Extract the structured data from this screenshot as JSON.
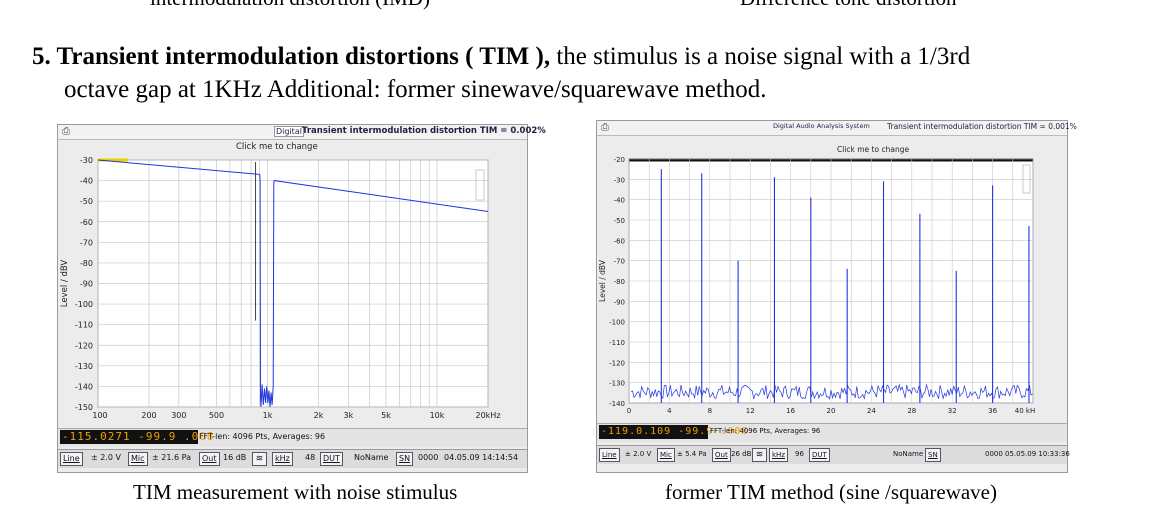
{
  "previous_captions": {
    "left": "intermodulation distortion (IMD)",
    "right": "Difference tone distortion"
  },
  "heading": {
    "bold": "5. Transient intermodulation distortions ( TIM ),",
    "line1_rest": " the stimulus is a noise signal with a 1/3rd",
    "line2": "octave gap at 1KHz Additional: former sinewave/squarewave method."
  },
  "left_panel": {
    "tab": "Digital",
    "title": "Transient intermodulation distortion TIM = 0.002%",
    "click_hint": "Click me to change",
    "y_axis_label": "Level / dBV",
    "y_ticks": [
      "-30",
      "-40",
      "-50",
      "-60",
      "-70",
      "-80",
      "-90",
      "-100",
      "-110",
      "-120",
      "-130",
      "-140",
      "-150"
    ],
    "x_ticks": [
      "100",
      "200",
      "300",
      "500",
      "1k",
      "2k",
      "3k",
      "5k",
      "10k",
      "20kHz"
    ],
    "lcd": "-115.0271  -99.9 .008",
    "fft_info": "FFT-len: 4096 Pts, Averages: 96",
    "controls": {
      "line": "Line",
      "line_val": "± 2.0 V",
      "mic": "Mic",
      "mic_val": "± 21.6 Pa",
      "out": "Out",
      "out_val": "16 dB",
      "khz": "kHz",
      "khz_val": "48",
      "dut": "DUT",
      "noname": "NoName",
      "sn": "SN",
      "sn_val": "0000",
      "datetime": "04.05.09 14:14:54"
    }
  },
  "right_panel": {
    "tab": "Digital Audio Analysis System",
    "title": "Transient intermodulation distortion TIM = 0.001%",
    "click_hint": "Click me to change",
    "y_axis_label": "Level / dBV",
    "y_ticks": [
      "-20",
      "-30",
      "-40",
      "-50",
      "-60",
      "-70",
      "-80",
      "-90",
      "-100",
      "-110",
      "-120",
      "-130",
      "-140"
    ],
    "x_ticks": [
      "0",
      "4",
      "8",
      "12",
      "16",
      "20",
      "24",
      "28",
      "32",
      "36",
      "40 kH"
    ],
    "lcd": "-119.0.109  -99.9 .008",
    "fft_info": "FFT-len: 4096 Pts, Averages: 96",
    "controls": {
      "line": "Line",
      "line_val": "± 2.0 V",
      "mic": "Mic",
      "mic_val": "± 5.4 Pa",
      "out": "Out",
      "out_val": "26 dB",
      "khz": "kHz",
      "khz_val": "96",
      "dut": "DUT",
      "noname": "NoName",
      "sn": "SN",
      "sn_val": "0000",
      "datetime": "05.05.09 10:33:36"
    }
  },
  "captions": {
    "left": "TIM measurement with noise stimulus",
    "right": "former TIM method (sine /squarewave)"
  },
  "colors": {
    "trace": "#2233dd",
    "grid": "#c8c8c8",
    "lcd_text": "#f0a000"
  }
}
